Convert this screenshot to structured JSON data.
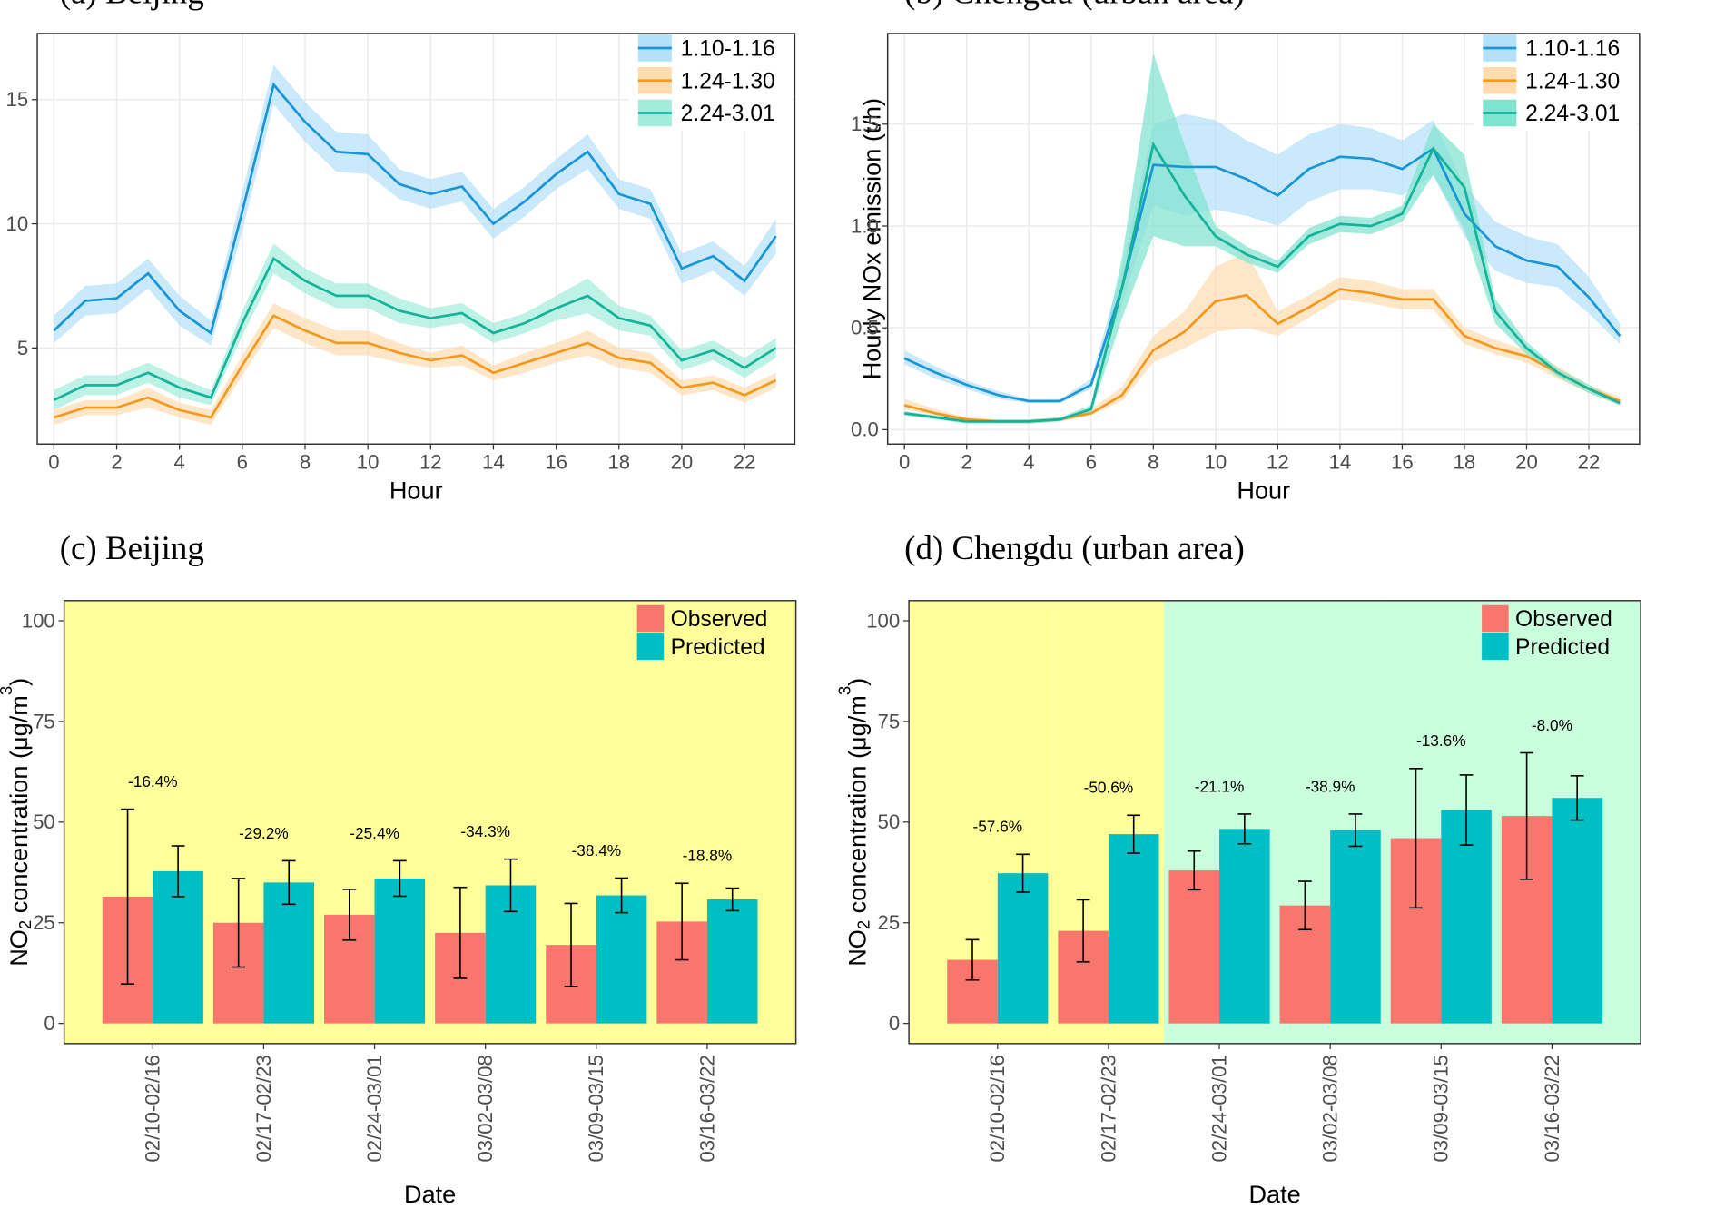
{
  "chart_data": [
    {
      "type": "line",
      "title": "(a) Beijing",
      "xlabel": "Hour",
      "grid": true,
      "legend": "top-right",
      "x": [
        0,
        1,
        2,
        3,
        4,
        5,
        6,
        7,
        8,
        9,
        10,
        11,
        12,
        13,
        14,
        15,
        16,
        17,
        18,
        19,
        20,
        21,
        22,
        23
      ],
      "xlim": [
        -0.53,
        23.6
      ],
      "xticks": [
        0,
        2,
        4,
        6,
        8,
        10,
        12,
        14,
        16,
        18,
        20,
        22
      ],
      "ylim": [
        1.13,
        17.66
      ],
      "yticks": [
        5,
        10,
        15
      ],
      "series": [
        {
          "name": "1.10-1.16",
          "color": "#1b96d4",
          "band_color": "#b3e1fa",
          "values": [
            5.7,
            6.9,
            7.0,
            8.0,
            6.5,
            5.6,
            10.5,
            15.6,
            14.1,
            12.9,
            12.8,
            11.6,
            11.2,
            11.5,
            10.0,
            10.9,
            12.0,
            12.9,
            11.2,
            10.8,
            8.2,
            8.7,
            7.7,
            9.5
          ],
          "lower": [
            5.2,
            6.3,
            6.4,
            7.4,
            5.9,
            5.1,
            9.7,
            14.8,
            13.3,
            12.1,
            12.0,
            11.0,
            10.6,
            10.9,
            9.4,
            10.3,
            11.4,
            12.2,
            10.6,
            10.2,
            7.6,
            8.1,
            7.1,
            8.8
          ],
          "upper": [
            6.3,
            7.5,
            7.6,
            8.6,
            7.1,
            6.1,
            11.3,
            16.4,
            14.9,
            13.7,
            13.6,
            12.2,
            11.8,
            12.1,
            10.6,
            11.5,
            12.6,
            13.6,
            11.8,
            11.4,
            8.8,
            9.3,
            8.3,
            10.2
          ]
        },
        {
          "name": "1.24-1.30",
          "color": "#f39a1e",
          "band_color": "#fddcb0",
          "values": [
            2.2,
            2.6,
            2.6,
            3.0,
            2.5,
            2.2,
            4.3,
            6.3,
            5.7,
            5.2,
            5.2,
            4.8,
            4.5,
            4.7,
            4.0,
            4.4,
            4.8,
            5.2,
            4.6,
            4.4,
            3.4,
            3.6,
            3.1,
            3.7
          ],
          "lower": [
            1.9,
            2.3,
            2.3,
            2.6,
            2.2,
            1.9,
            3.9,
            5.8,
            5.2,
            4.7,
            4.7,
            4.4,
            4.2,
            4.3,
            3.7,
            4.0,
            4.4,
            4.7,
            4.2,
            4.0,
            3.1,
            3.3,
            2.8,
            3.4
          ],
          "upper": [
            2.5,
            2.9,
            2.9,
            3.4,
            2.8,
            2.5,
            4.7,
            6.8,
            6.2,
            5.7,
            5.7,
            5.2,
            4.8,
            5.1,
            4.3,
            4.8,
            5.2,
            5.7,
            5.0,
            4.8,
            3.7,
            3.9,
            3.4,
            4.0
          ]
        },
        {
          "name": "2.24-3.01",
          "color": "#14b39a",
          "band_color": "#a3ecdc",
          "values": [
            2.9,
            3.5,
            3.5,
            4.0,
            3.4,
            3.0,
            6.0,
            8.6,
            7.7,
            7.1,
            7.1,
            6.5,
            6.2,
            6.4,
            5.6,
            6.0,
            6.6,
            7.1,
            6.2,
            5.9,
            4.5,
            4.9,
            4.2,
            5.0
          ],
          "lower": [
            2.5,
            3.1,
            3.1,
            3.6,
            3.0,
            2.7,
            5.5,
            8.0,
            7.2,
            6.6,
            6.6,
            6.0,
            5.8,
            6.0,
            5.2,
            5.6,
            6.1,
            6.4,
            5.7,
            5.5,
            4.1,
            4.5,
            3.8,
            4.6
          ],
          "upper": [
            3.3,
            3.9,
            3.9,
            4.4,
            3.8,
            3.3,
            6.5,
            9.2,
            8.2,
            7.6,
            7.6,
            7.0,
            6.6,
            6.8,
            6.0,
            6.4,
            7.1,
            7.8,
            6.7,
            6.3,
            4.9,
            5.3,
            4.6,
            5.4
          ]
        }
      ]
    },
    {
      "type": "line",
      "title": "(b) Chengdu (urban area)",
      "xlabel": "Hour",
      "ylabel": "Hourly NOx emission (t/h)",
      "grid": true,
      "legend": "top-right",
      "x": [
        0,
        1,
        2,
        3,
        4,
        5,
        6,
        7,
        8,
        9,
        10,
        11,
        12,
        13,
        14,
        15,
        16,
        17,
        18,
        19,
        20,
        21,
        22,
        23
      ],
      "xlim": [
        -0.54,
        23.63
      ],
      "xticks": [
        0,
        2,
        4,
        6,
        8,
        10,
        12,
        14,
        16,
        18,
        20,
        22
      ],
      "ylim": [
        -0.071,
        1.945
      ],
      "yticks": [
        {
          "value": 0,
          "label": "0.0"
        },
        0.5,
        {
          "value": 1,
          "label": "1.0"
        },
        1.5
      ],
      "series": [
        {
          "name": "1.10-1.16",
          "color": "#1b96d4",
          "band_color": "#b3e1fa",
          "values": [
            0.35,
            0.28,
            0.22,
            0.17,
            0.14,
            0.14,
            0.22,
            0.7,
            1.3,
            1.29,
            1.29,
            1.23,
            1.15,
            1.28,
            1.34,
            1.33,
            1.28,
            1.38,
            1.06,
            0.9,
            0.83,
            0.8,
            0.65,
            0.46
          ],
          "lower": [
            0.32,
            0.25,
            0.2,
            0.15,
            0.13,
            0.13,
            0.2,
            0.62,
            1.1,
            1.05,
            1.08,
            1.05,
            1.0,
            1.12,
            1.18,
            1.18,
            1.15,
            1.25,
            0.95,
            0.78,
            0.72,
            0.7,
            0.57,
            0.42
          ],
          "upper": [
            0.39,
            0.31,
            0.24,
            0.19,
            0.15,
            0.15,
            0.25,
            0.8,
            1.5,
            1.55,
            1.52,
            1.42,
            1.35,
            1.45,
            1.5,
            1.48,
            1.42,
            1.52,
            1.2,
            1.02,
            0.95,
            0.91,
            0.75,
            0.52
          ]
        },
        {
          "name": "1.24-1.30",
          "color": "#f39a1e",
          "band_color": "#fddcb0",
          "values": [
            0.12,
            0.08,
            0.05,
            0.04,
            0.04,
            0.05,
            0.08,
            0.17,
            0.39,
            0.48,
            0.63,
            0.66,
            0.52,
            0.6,
            0.69,
            0.67,
            0.64,
            0.64,
            0.46,
            0.4,
            0.36,
            0.28,
            0.2,
            0.14
          ],
          "lower": [
            0.1,
            0.07,
            0.04,
            0.03,
            0.03,
            0.04,
            0.07,
            0.14,
            0.33,
            0.4,
            0.48,
            0.5,
            0.46,
            0.55,
            0.64,
            0.62,
            0.59,
            0.59,
            0.42,
            0.37,
            0.33,
            0.25,
            0.18,
            0.12
          ],
          "upper": [
            0.15,
            0.1,
            0.06,
            0.05,
            0.05,
            0.06,
            0.1,
            0.21,
            0.46,
            0.58,
            0.8,
            0.87,
            0.58,
            0.66,
            0.75,
            0.73,
            0.69,
            0.69,
            0.5,
            0.44,
            0.39,
            0.31,
            0.22,
            0.16
          ]
        },
        {
          "name": "2.24-3.01",
          "color": "#14b39a",
          "band_color": "#7fe3cf",
          "values": [
            0.08,
            0.06,
            0.04,
            0.04,
            0.04,
            0.05,
            0.1,
            0.7,
            1.4,
            1.15,
            0.95,
            0.86,
            0.8,
            0.95,
            1.01,
            1.0,
            1.06,
            1.38,
            1.19,
            0.58,
            0.4,
            0.28,
            0.2,
            0.13
          ],
          "lower": [
            0.07,
            0.05,
            0.03,
            0.03,
            0.03,
            0.04,
            0.08,
            0.55,
            0.95,
            0.9,
            0.9,
            0.82,
            0.77,
            0.91,
            0.97,
            0.96,
            1.02,
            1.25,
            0.98,
            0.52,
            0.37,
            0.26,
            0.18,
            0.12
          ],
          "upper": [
            0.09,
            0.07,
            0.05,
            0.05,
            0.05,
            0.06,
            0.12,
            0.85,
            1.85,
            1.4,
            1.0,
            0.9,
            0.83,
            0.99,
            1.05,
            1.04,
            1.1,
            1.5,
            1.35,
            0.64,
            0.43,
            0.3,
            0.22,
            0.14
          ]
        }
      ]
    },
    {
      "type": "bar",
      "title": "(c) Beijing",
      "xlabel": "Date",
      "ylabel": {
        "main": "NO",
        "sub": "2",
        "rest": " concentration (μg/m",
        "sup": "3",
        "end": ")"
      },
      "grid": false,
      "legend": "top-right",
      "categories": [
        "02/10-02/16",
        "02/17-02/23",
        "02/24-03/01",
        "03/02-03/08",
        "03/09-03/15",
        "03/16-03/22"
      ],
      "category_backgrounds": [
        "#ffff99",
        "#ffff99",
        "#ffff99",
        "#ffff99",
        "#ffff99",
        "#ffff99"
      ],
      "annotations": [
        "-16.4%",
        "-29.2%",
        "-25.4%",
        "-34.3%",
        "-38.4%",
        "-18.8%"
      ],
      "ylim": [
        -5,
        105
      ],
      "yticks": [
        0,
        25,
        50,
        75,
        100
      ],
      "series": [
        {
          "name": "Observed",
          "color": "#f8766d",
          "values": [
            31.5,
            25,
            27,
            22.5,
            19.5,
            25.3
          ],
          "error": [
            21.7,
            11,
            6.3,
            11.3,
            10.3,
            9.5
          ]
        },
        {
          "name": "Predicted",
          "color": "#00bfc4",
          "values": [
            37.8,
            35,
            36,
            34.3,
            31.8,
            30.8
          ],
          "error": [
            6.3,
            5.4,
            4.4,
            6.5,
            4.3,
            2.8
          ]
        }
      ]
    },
    {
      "type": "bar",
      "title": "(d) Chengdu (urban area)",
      "xlabel": "Date",
      "ylabel": {
        "main": "NO",
        "sub": "2",
        "rest": " concentration (μg/m",
        "sup": "3",
        "end": ")"
      },
      "grid": false,
      "legend": "top-right",
      "categories": [
        "02/10-02/16",
        "02/17-02/23",
        "02/24-03/01",
        "03/02-03/08",
        "03/09-03/15",
        "03/16-03/22"
      ],
      "category_backgrounds": [
        "#ffff99",
        "#ffff99",
        "#c9ffdc",
        "#c9ffdc",
        "#c9ffdc",
        "#c9ffdc"
      ],
      "annotations": [
        "-57.6%",
        "-50.6%",
        "-21.1%",
        "-38.9%",
        "-13.6%",
        "-8.0%"
      ],
      "ylim": [
        -5,
        105
      ],
      "yticks": [
        0,
        25,
        50,
        75,
        100
      ],
      "series": [
        {
          "name": "Observed",
          "color": "#f8766d",
          "values": [
            15.8,
            23,
            38,
            29.3,
            46,
            51.5
          ],
          "error": [
            5,
            7.7,
            4.8,
            6,
            17.3,
            15.7
          ]
        },
        {
          "name": "Predicted",
          "color": "#00bfc4",
          "values": [
            37.3,
            47,
            48.3,
            48,
            53,
            56
          ],
          "error": [
            4.7,
            4.7,
            3.7,
            4,
            8.7,
            5.5
          ]
        }
      ]
    }
  ]
}
